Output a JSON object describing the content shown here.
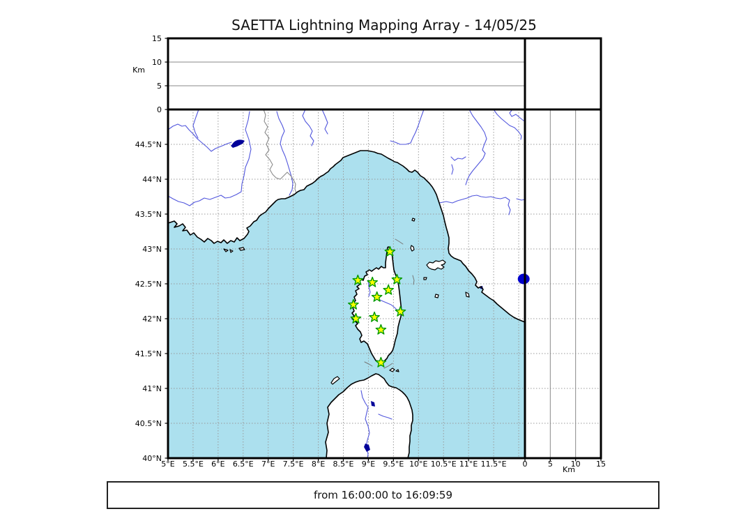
{
  "title": "SAETTA Lightning Mapping Array - 14/05/25",
  "footer": {
    "text": "from 16:00:00 to 16:09:59"
  },
  "axes": {
    "altitude_label_top": "Km",
    "altitude_label_right": "Km",
    "altitude_ticks": [
      0,
      5,
      10,
      15
    ],
    "lat_tick_labels": [
      "44.5°N",
      "44°N",
      "43.5°N",
      "43°N",
      "42.5°N",
      "42°N",
      "41.5°N",
      "41°N",
      "40.5°N",
      "40°N"
    ],
    "lon_tick_labels": [
      "5°E",
      "5.5°E",
      "6°E",
      "6.5°E",
      "7°E",
      "7.5°E",
      "8°E",
      "8.5°E",
      "9°E",
      "9.5°E",
      "10°E",
      "10.5°E",
      "11°E",
      "11.5°E"
    ]
  },
  "colors": {
    "sea": "#ace0ee",
    "land": "#ffffff",
    "river": "#5156dd",
    "lake": "#000099",
    "grid_dotted": "#999999",
    "grid_solid": "#888888",
    "station_fill": "#ffff00",
    "station_edge": "#009900",
    "source_dot": "#0000cc"
  },
  "chart_data": {
    "type": "scatter",
    "title": "SAETTA Lightning Mapping Array - 14/05/25",
    "time_window": {
      "from": "16:00:00",
      "to": "16:09:59"
    },
    "panels": [
      "plan view lon-lat map",
      "altitude vs longitude (top)",
      "altitude vs latitude (right)"
    ],
    "map_extent": {
      "lon_min": 5,
      "lon_max": 12.13,
      "lat_min": 40,
      "lat_max": 45
    },
    "lat_ticks_deg": [
      44.5,
      44,
      43.5,
      43,
      42.5,
      42,
      41.5,
      41,
      40.5,
      40
    ],
    "lon_ticks_deg": [
      5,
      5.5,
      6,
      6.5,
      7,
      7.5,
      8,
      8.5,
      9,
      9.5,
      10,
      10.5,
      11,
      11.5
    ],
    "altitude_axis_km": {
      "min": 0,
      "max": 15,
      "ticks": [
        0,
        5,
        10,
        15
      ],
      "gridlines_km": [
        5,
        10
      ]
    },
    "stations": [
      {
        "lon": 9.43,
        "lat": 42.96
      },
      {
        "lon": 8.79,
        "lat": 42.55
      },
      {
        "lon": 9.08,
        "lat": 42.52
      },
      {
        "lon": 9.57,
        "lat": 42.56
      },
      {
        "lon": 9.4,
        "lat": 42.41
      },
      {
        "lon": 9.17,
        "lat": 42.31
      },
      {
        "lon": 8.7,
        "lat": 42.2
      },
      {
        "lon": 9.64,
        "lat": 42.1
      },
      {
        "lon": 8.75,
        "lat": 42.0
      },
      {
        "lon": 9.12,
        "lat": 42.02
      },
      {
        "lon": 9.25,
        "lat": 41.84
      },
      {
        "lon": 9.25,
        "lat": 41.37
      }
    ],
    "sources": [
      {
        "lon": 12.1,
        "lat": 42.57,
        "alt_km": 0
      }
    ]
  }
}
